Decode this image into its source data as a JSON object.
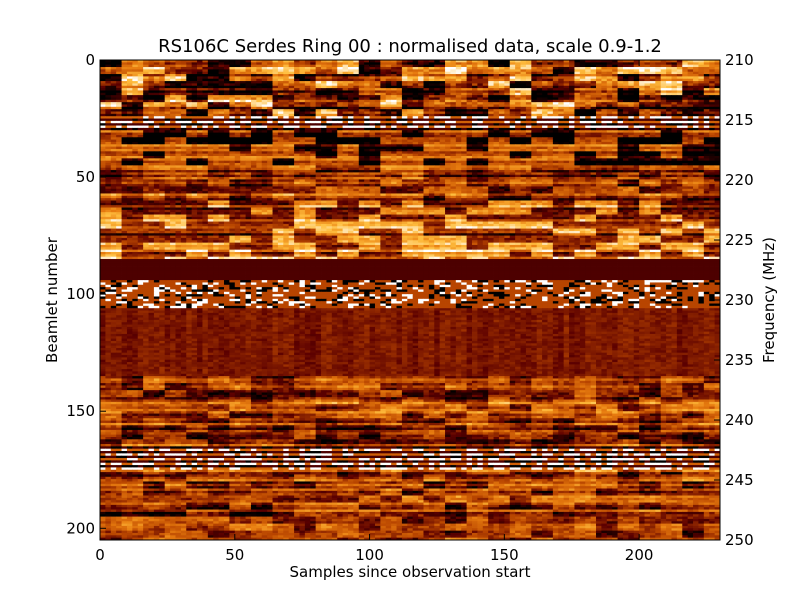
{
  "chart_data": {
    "type": "heatmap",
    "title": "RS106C Serdes Ring 00 : normalised data, scale 0.9-1.2",
    "xlabel": "Samples since observation start",
    "ylabel": "Beamlet number",
    "y2label": "Frequency (MHz)",
    "xlim": [
      0,
      230
    ],
    "ylim": [
      0,
      205
    ],
    "y2lim": [
      210,
      250
    ],
    "y_inverted": true,
    "xticks": [
      "0",
      "50",
      "100",
      "150",
      "200"
    ],
    "xtick_values": [
      0,
      50,
      100,
      150,
      200
    ],
    "yticks": [
      "0",
      "50",
      "100",
      "150",
      "200"
    ],
    "ytick_values": [
      0,
      50,
      100,
      150,
      200
    ],
    "y2ticks": [
      "210",
      "215",
      "220",
      "225",
      "230",
      "235",
      "240",
      "245",
      "250"
    ],
    "y2tick_values": [
      210,
      215,
      220,
      225,
      230,
      235,
      240,
      245,
      250
    ],
    "color_scale": {
      "vmin": 0.9,
      "vmax": 1.2,
      "colormap": "afmhot",
      "stops": [
        "#000000",
        "#5c0000",
        "#b84500",
        "#e87d10",
        "#ffbf40",
        "#ffffff"
      ]
    },
    "bands": [
      {
        "beamlets": [
          0,
          10
        ],
        "pattern": "high-variance"
      },
      {
        "beamlets": [
          10,
          24
        ],
        "pattern": "high-variance"
      },
      {
        "beamlets": [
          24,
          30
        ],
        "pattern": "striped"
      },
      {
        "beamlets": [
          30,
          45
        ],
        "pattern": "dark-patches"
      },
      {
        "beamlets": [
          45,
          60
        ],
        "pattern": "mixed"
      },
      {
        "beamlets": [
          60,
          85
        ],
        "pattern": "bright-patches"
      },
      {
        "beamlets": [
          85,
          94
        ],
        "pattern": "uniform",
        "value": 0.95
      },
      {
        "beamlets": [
          94,
          106
        ],
        "pattern": "speckled"
      },
      {
        "beamlets": [
          106,
          135
        ],
        "pattern": "smooth",
        "value": 0.98
      },
      {
        "beamlets": [
          135,
          165
        ],
        "pattern": "mixed"
      },
      {
        "beamlets": [
          165,
          175
        ],
        "pattern": "striped"
      },
      {
        "beamlets": [
          175,
          205
        ],
        "pattern": "mixed"
      }
    ]
  }
}
